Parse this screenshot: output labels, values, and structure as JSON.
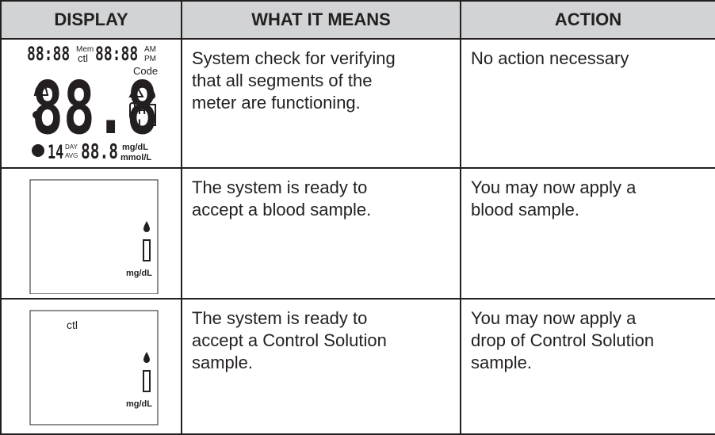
{
  "table": {
    "header": [
      "DISPLAY",
      "WHAT IT MEANS",
      "ACTION"
    ],
    "rows": [
      {
        "display": {
          "time_left": "88:88",
          "mem": "Mem",
          "ctl": "ctl",
          "time_right": "88:88",
          "am": "AM",
          "pm": "PM",
          "code": "Code",
          "main": "88.8",
          "high": "H",
          "low": "L",
          "days": "14",
          "day": "DAY",
          "avg": "AVG",
          "avg_value": "88.8",
          "unit_mg": "mg/dL",
          "unit_mmol": "mmol/L"
        },
        "meaning": [
          "System check for verifying",
          "that all segments of the",
          "meter are functioning."
        ],
        "action": [
          "No action necessary"
        ]
      },
      {
        "display": {
          "unit_mg": "mg/dL"
        },
        "meaning": [
          "The system is ready to",
          "accept a blood sample."
        ],
        "action": [
          "You may now apply a",
          "blood sample."
        ]
      },
      {
        "display": {
          "ctl": "ctl",
          "unit_mg": "mg/dL"
        },
        "meaning": [
          "The system is ready to",
          "accept a Control Solution",
          "sample."
        ],
        "action": [
          "You may now apply a",
          "drop of Control Solution",
          "sample."
        ]
      }
    ]
  }
}
